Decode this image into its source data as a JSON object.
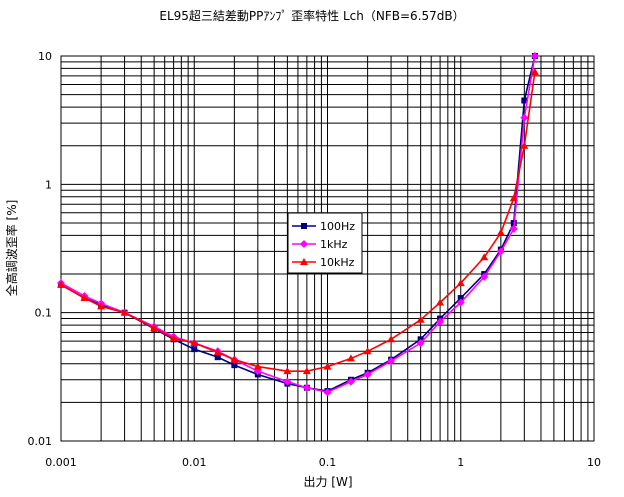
{
  "chart_data": {
    "type": "line",
    "title": "EL95超三結差動PPｱﾝﾌﾟ 歪率特性 Lch（NFB=6.57dB）",
    "xlabel": "出力 [W]",
    "ylabel": "全高調波歪率 [%]",
    "xscale": "log",
    "yscale": "log",
    "xlim": [
      0.001,
      10
    ],
    "ylim": [
      0.01,
      10
    ],
    "xticks": [
      "0.001",
      "0.01",
      "0.1",
      "1",
      "10"
    ],
    "yticks": [
      "0.01",
      "0.1",
      "1",
      "10"
    ],
    "grid": true,
    "legend": "center",
    "series": [
      {
        "name": "100Hz",
        "color": "#000080",
        "marker": "square",
        "points": [
          [
            0.001,
            0.165
          ],
          [
            0.0015,
            0.13
          ],
          [
            0.002,
            0.115
          ],
          [
            0.003,
            0.1
          ],
          [
            0.005,
            0.075
          ],
          [
            0.007,
            0.062
          ],
          [
            0.01,
            0.052
          ],
          [
            0.015,
            0.045
          ],
          [
            0.02,
            0.039
          ],
          [
            0.03,
            0.033
          ],
          [
            0.05,
            0.028
          ],
          [
            0.07,
            0.026
          ],
          [
            0.1,
            0.0245
          ],
          [
            0.15,
            0.03
          ],
          [
            0.2,
            0.034
          ],
          [
            0.3,
            0.043
          ],
          [
            0.5,
            0.062
          ],
          [
            0.7,
            0.09
          ],
          [
            1.0,
            0.13
          ],
          [
            1.5,
            0.2
          ],
          [
            2.0,
            0.31
          ],
          [
            2.5,
            0.5
          ],
          [
            3.0,
            4.5
          ],
          [
            3.6,
            10
          ]
        ]
      },
      {
        "name": "1kHz",
        "color": "#ff00ff",
        "marker": "diamond",
        "points": [
          [
            0.001,
            0.17
          ],
          [
            0.0015,
            0.135
          ],
          [
            0.002,
            0.118
          ],
          [
            0.003,
            0.1
          ],
          [
            0.005,
            0.078
          ],
          [
            0.007,
            0.065
          ],
          [
            0.01,
            0.058
          ],
          [
            0.015,
            0.05
          ],
          [
            0.02,
            0.043
          ],
          [
            0.03,
            0.035
          ],
          [
            0.05,
            0.029
          ],
          [
            0.07,
            0.026
          ],
          [
            0.1,
            0.024
          ],
          [
            0.15,
            0.029
          ],
          [
            0.2,
            0.033
          ],
          [
            0.3,
            0.042
          ],
          [
            0.5,
            0.058
          ],
          [
            0.7,
            0.085
          ],
          [
            1.0,
            0.12
          ],
          [
            1.5,
            0.19
          ],
          [
            2.0,
            0.3
          ],
          [
            2.5,
            0.45
          ],
          [
            3.0,
            3.3
          ],
          [
            3.6,
            10
          ]
        ]
      },
      {
        "name": "10kHz",
        "color": "#ff0000",
        "marker": "triangle",
        "points": [
          [
            0.001,
            0.165
          ],
          [
            0.0015,
            0.13
          ],
          [
            0.002,
            0.112
          ],
          [
            0.003,
            0.1
          ],
          [
            0.005,
            0.076
          ],
          [
            0.007,
            0.063
          ],
          [
            0.01,
            0.058
          ],
          [
            0.015,
            0.049
          ],
          [
            0.02,
            0.043
          ],
          [
            0.03,
            0.038
          ],
          [
            0.05,
            0.035
          ],
          [
            0.07,
            0.035
          ],
          [
            0.1,
            0.038
          ],
          [
            0.15,
            0.044
          ],
          [
            0.2,
            0.05
          ],
          [
            0.3,
            0.062
          ],
          [
            0.5,
            0.088
          ],
          [
            0.7,
            0.12
          ],
          [
            1.0,
            0.17
          ],
          [
            1.5,
            0.27
          ],
          [
            2.0,
            0.42
          ],
          [
            2.5,
            0.78
          ],
          [
            3.0,
            2.0
          ],
          [
            3.6,
            7.5
          ]
        ]
      }
    ]
  }
}
